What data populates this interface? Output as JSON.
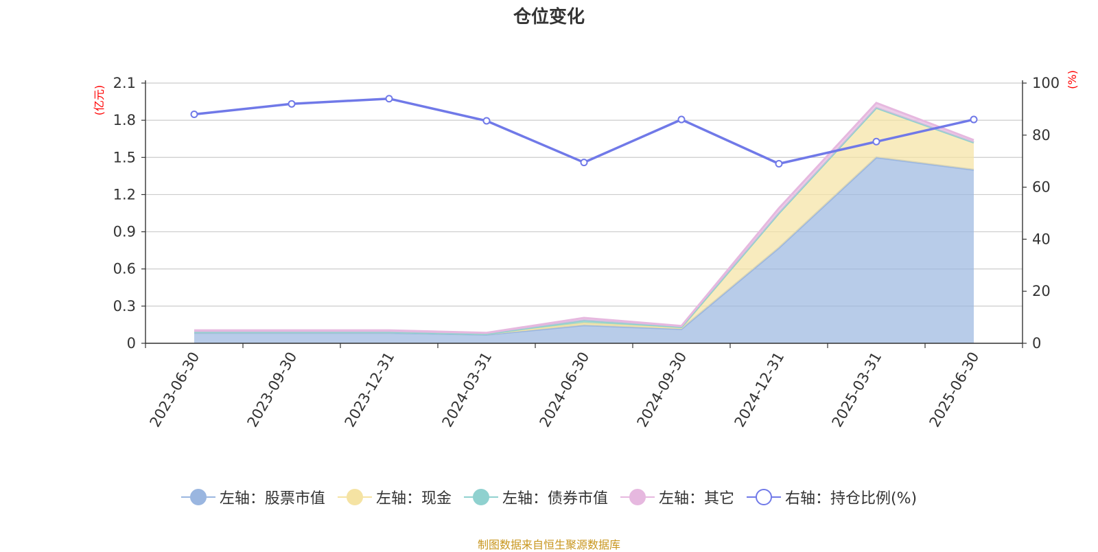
{
  "title": "仓位变化",
  "source_note": "制图数据来自恒生聚源数据库",
  "chart_data": {
    "type": "area",
    "categories": [
      "2023-06-30",
      "2023-09-30",
      "2023-12-31",
      "2024-03-31",
      "2024-06-30",
      "2024-09-30",
      "2024-12-31",
      "2025-03-31",
      "2025-06-30"
    ],
    "left_axis": {
      "unit": "(亿元)",
      "ylim": [
        0,
        2.1
      ],
      "ticks": [
        "0",
        "0.3",
        "0.6",
        "0.9",
        "1.2",
        "1.5",
        "1.8",
        "2.1"
      ]
    },
    "right_axis": {
      "unit": "(%)",
      "ylim": [
        0,
        100
      ],
      "ticks": [
        "0",
        "20",
        "40",
        "60",
        "80",
        "100"
      ]
    },
    "grid": true,
    "legend_position": "bottom",
    "series": [
      {
        "name": "左轴：股票市值",
        "axis": "left",
        "stack": true,
        "color": "#9ab6e0",
        "values": [
          0.085,
          0.085,
          0.085,
          0.07,
          0.145,
          0.115,
          0.77,
          1.5,
          1.4
        ]
      },
      {
        "name": "左轴：现金",
        "axis": "left",
        "stack": true,
        "color": "#f5e3a3",
        "values": [
          0.005,
          0.005,
          0.005,
          0.005,
          0.02,
          0.01,
          0.28,
          0.4,
          0.22
        ]
      },
      {
        "name": "左轴：债券市值",
        "axis": "left",
        "stack": true,
        "color": "#8fd1cf",
        "values": [
          0.0,
          0.0,
          0.0,
          0.0,
          0.02,
          0.005,
          0.0,
          0.0,
          0.0
        ]
      },
      {
        "name": "左轴：其它",
        "axis": "left",
        "stack": true,
        "color": "#e6b8df",
        "values": [
          0.015,
          0.015,
          0.015,
          0.01,
          0.02,
          0.01,
          0.04,
          0.04,
          0.02
        ]
      },
      {
        "name": "右轴：持仓比例(%)",
        "axis": "right",
        "type": "line",
        "color": "#7079e8",
        "values": [
          88,
          92,
          94,
          85.5,
          69.5,
          86,
          69,
          77.5,
          86
        ]
      }
    ]
  }
}
